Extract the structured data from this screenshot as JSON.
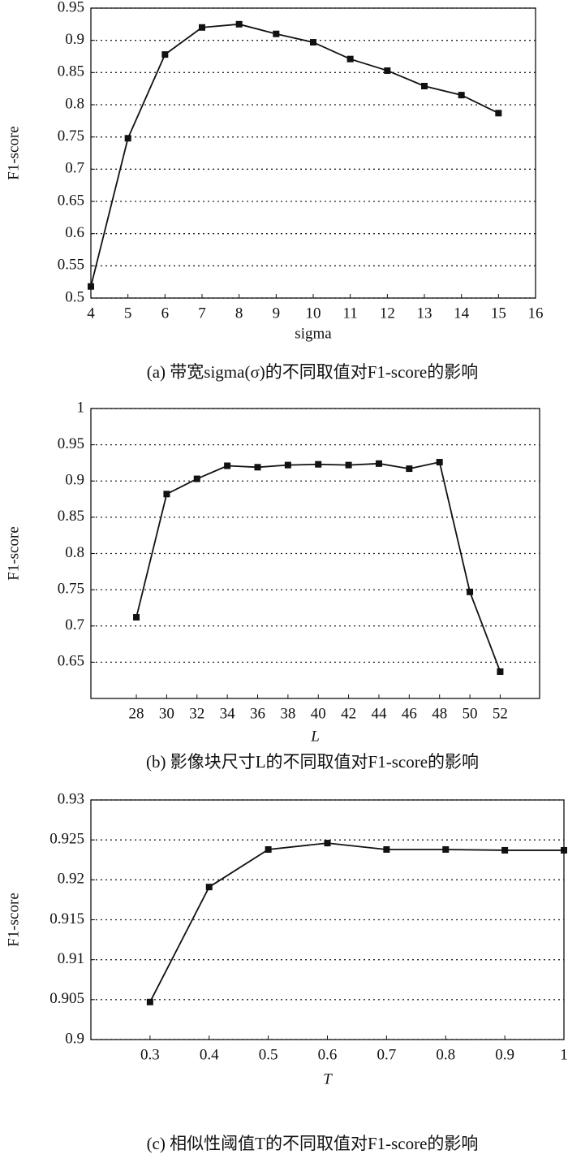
{
  "chart_data": [
    {
      "type": "line",
      "caption": "(a) 带宽sigma(σ)的不同取值对F1-score的影响",
      "x_label": "sigma",
      "y_label": "F1-score",
      "x": [
        4,
        5,
        6,
        7,
        8,
        9,
        10,
        11,
        12,
        13,
        14,
        15
      ],
      "series": [
        {
          "color": "#111111",
          "values": [
            0.518,
            0.748,
            0.878,
            0.92,
            0.925,
            0.91,
            0.897,
            0.871,
            0.853,
            0.829,
            0.815,
            0.787
          ]
        }
      ],
      "xlim": [
        4,
        16
      ],
      "xticks": [
        4,
        5,
        6,
        7,
        8,
        9,
        10,
        11,
        12,
        13,
        14,
        15,
        16
      ],
      "ylim": [
        0.5,
        0.95
      ],
      "yticks": [
        0.5,
        0.55,
        0.6,
        0.65,
        0.7,
        0.75,
        0.8,
        0.85,
        0.9,
        0.95
      ],
      "grid": true
    },
    {
      "type": "line",
      "caption": "(b) 影像块尺寸L的不同取值对F1-score的影响",
      "x_label": "L",
      "y_label": "F1-score",
      "x": [
        28,
        30,
        32,
        34,
        36,
        38,
        40,
        42,
        44,
        46,
        48,
        50,
        52
      ],
      "series": [
        {
          "color": "#111111",
          "values": [
            0.712,
            0.882,
            0.903,
            0.921,
            0.919,
            0.922,
            0.923,
            0.922,
            0.924,
            0.917,
            0.926,
            0.747,
            0.637
          ]
        }
      ],
      "xlim": [
        25,
        54.6
      ],
      "xticks": [
        28,
        30,
        32,
        34,
        36,
        38,
        40,
        42,
        44,
        46,
        48,
        50,
        52
      ],
      "ylim": [
        0.6,
        1
      ],
      "yticks": [
        0.65,
        0.7,
        0.75,
        0.8,
        0.85,
        0.9,
        0.95,
        1
      ],
      "grid": true
    },
    {
      "type": "line",
      "caption": "(c) 相似性阈值T的不同取值对F1-score的影响",
      "x_label": "T",
      "y_label": "F1-score",
      "x": [
        0.3,
        0.4,
        0.5,
        0.6,
        0.7,
        0.8,
        0.9,
        1
      ],
      "series": [
        {
          "color": "#111111",
          "values": [
            0.9047,
            0.9191,
            0.9238,
            0.9246,
            0.9238,
            0.9238,
            0.9237,
            0.9237
          ]
        }
      ],
      "xlim": [
        0.2,
        1
      ],
      "xticks": [
        0.3,
        0.4,
        0.5,
        0.6,
        0.7,
        0.8,
        0.9,
        1
      ],
      "ylim": [
        0.9,
        0.93
      ],
      "yticks": [
        0.9,
        0.905,
        0.91,
        0.915,
        0.92,
        0.925,
        0.93
      ],
      "grid": true
    }
  ]
}
